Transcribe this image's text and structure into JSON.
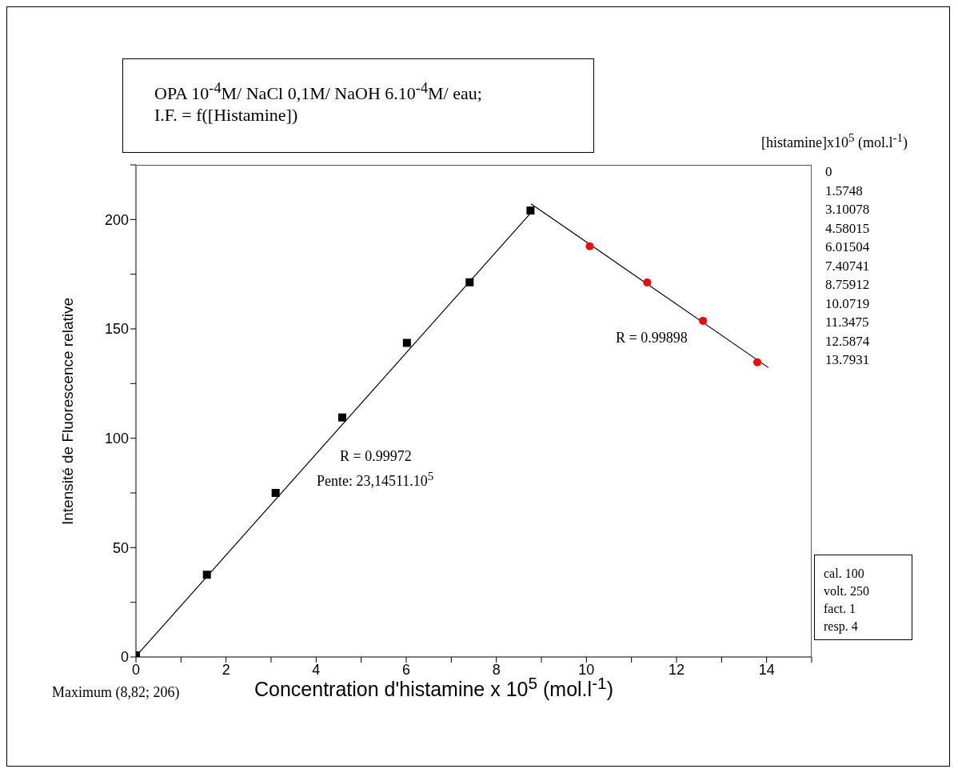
{
  "chart_data": {
    "type": "scatter",
    "title": "OPA 10$^{-4}$M/ NaCl 0,1M/ NaOH 6.10$^{-4}$M/ eau;",
    "subtitle": "I.F. = f([Histamine])",
    "xlabel": "Concentration d'histamine x 10$^{5}$ (mol.l$^{-1}$)",
    "ylabel": "Intensité de Fluorescence relative",
    "xlim": [
      0,
      15
    ],
    "xticks": [
      0,
      {
        "value": 1,
        "label": null
      },
      2,
      {
        "value": 3,
        "label": null
      },
      4,
      {
        "value": 5,
        "label": null
      },
      6,
      {
        "value": 7,
        "label": null
      },
      8,
      {
        "value": 9,
        "label": null
      },
      10,
      {
        "value": 11,
        "label": null
      },
      12,
      {
        "value": 13,
        "label": null
      },
      14,
      {
        "value": 15,
        "label": null
      }
    ],
    "ylim": [
      0,
      225
    ],
    "yticks": [
      0,
      {
        "value": 25,
        "label": null
      },
      50,
      {
        "value": 75,
        "label": null
      },
      100,
      {
        "value": 125,
        "label": null
      },
      150,
      {
        "value": 175,
        "label": null
      },
      200,
      {
        "value": 225,
        "label": null
      }
    ],
    "series": [
      {
        "color": "#000000",
        "marker": "square",
        "x": [
          0,
          1.5748,
          3.10078,
          4.58015,
          6.01504,
          7.40741,
          8.75912
        ],
        "values": [
          0.7,
          37.6,
          75.0,
          109.5,
          143.6,
          171.3,
          204.1
        ]
      },
      {
        "color": "#ff0000",
        "marker": "circle",
        "x": [
          10.0719,
          11.3475,
          12.5874,
          13.7931
        ],
        "values": [
          187.8,
          171.2,
          153.7,
          134.7
        ]
      },
      {
        "type": "line",
        "color": "#000000",
        "marker": "none",
        "line_style": "solid",
        "x": [
          0,
          8.82
        ],
        "values": [
          0.3,
          204.3
        ]
      },
      {
        "type": "line",
        "color": "#000000",
        "marker": "none",
        "line_style": "solid",
        "x": [
          8.77,
          14.04
        ],
        "values": [
          207.2,
          132.3
        ]
      }
    ],
    "annotations": [
      "R = 0.99972",
      "Pente: 23,14511.10$^{5}$",
      "R = 0.99898",
      "Maximum (8,82; 206)",
      "[histamine]x10$^{5}$ (mol.l$^{-1}$)",
      "0",
      "1.5748",
      "3.10078",
      "4.58015",
      "6.01504",
      "7.40741",
      "8.75912",
      "10.0719",
      "11.3475",
      "12.5874",
      "13.7931",
      "cal. 100",
      "volt. 250",
      "fact. 1",
      "resp. 4"
    ]
  }
}
